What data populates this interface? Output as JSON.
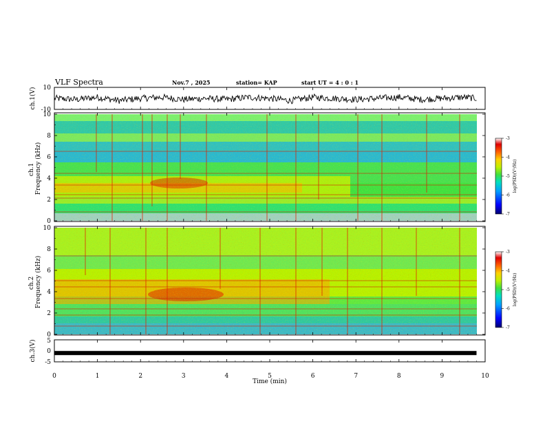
{
  "header": {
    "title": "VLF Spectra",
    "date": "Nov.7 , 2025",
    "station": "station= KAP",
    "start": "start UT = 4 : 0 : 1"
  },
  "colorbar": {
    "label": "log(PSD)(V²/Hz)",
    "ticks": [
      "-3",
      "-4",
      "-5",
      "-6",
      "-7"
    ],
    "colors": [
      "#000090",
      "#0000ff",
      "#00a0ff",
      "#00e0c0",
      "#40e040",
      "#c0f000",
      "#ffd000",
      "#ff6000",
      "#e00000",
      "#ffffff"
    ]
  },
  "chart_data": [
    {
      "type": "line",
      "title": "",
      "ylabel": "ch.1(V)",
      "ylim": [
        -10,
        10
      ],
      "yticks": [
        "10",
        "-10"
      ],
      "xlim": [
        0,
        10
      ],
      "note": "waveform fluctuating roughly between -4 and 3 V over 0-9.8 min",
      "x": [
        0,
        0.5,
        1,
        1.5,
        2,
        2.5,
        3,
        3.5,
        4,
        4.5,
        5,
        5.5,
        6,
        6.5,
        7,
        7.5,
        8,
        8.5,
        9,
        9.5,
        9.8
      ],
      "y": [
        0,
        -1,
        1,
        -2,
        0,
        1,
        -1,
        0,
        -1,
        1,
        0,
        -2,
        1,
        0,
        -1,
        0,
        1,
        -1,
        0,
        1,
        0
      ]
    },
    {
      "type": "heatmap",
      "ylabel": "ch.1\nFrequency (kHz)",
      "ylim": [
        0,
        10
      ],
      "xlim": [
        0,
        10
      ],
      "yticks": [
        "0",
        "2",
        "4",
        "6",
        "8",
        "10"
      ],
      "zlim": [
        -7,
        -3
      ],
      "colorbar_label": "log(PSD)(V²/Hz)",
      "colorbar_ticks": [
        "-3",
        "-4",
        "-5",
        "-6",
        "-7"
      ],
      "data_end_min": 9.8
    },
    {
      "type": "heatmap",
      "ylabel": "ch.2\nFrequency (kHz)",
      "ylim": [
        0,
        10
      ],
      "xlim": [
        0,
        10
      ],
      "yticks": [
        "0",
        "2",
        "4",
        "6",
        "8",
        "10"
      ],
      "zlim": [
        -7,
        -3
      ],
      "colorbar_label": "log(PSD)(V²/Hz)",
      "colorbar_ticks": [
        "-3",
        "-4",
        "-5",
        "-6",
        "-7"
      ],
      "data_end_min": 9.8
    },
    {
      "type": "line",
      "ylabel": "ch.3(V)",
      "ylim": [
        -5,
        5
      ],
      "yticks": [
        "5",
        "0",
        "-5"
      ],
      "xlim": [
        0,
        10
      ],
      "x": [
        0,
        9.8
      ],
      "y": [
        -1,
        -1
      ],
      "xlabel": "Time (min)",
      "xticks": [
        "0",
        "1",
        "2",
        "3",
        "4",
        "5",
        "6",
        "7",
        "8",
        "9",
        "10"
      ]
    }
  ]
}
